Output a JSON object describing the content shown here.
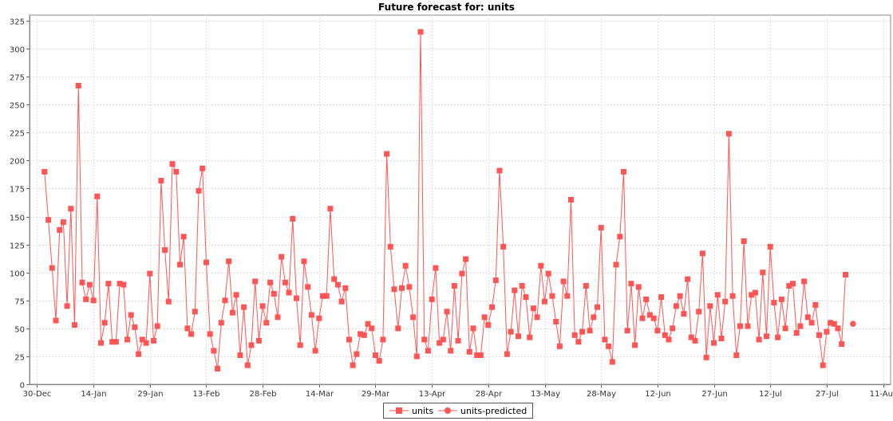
{
  "chart_data": {
    "type": "line",
    "title": "Future forecast for: units",
    "xlabel": "",
    "ylabel": "",
    "ylim": [
      0,
      330
    ],
    "yticks": [
      0,
      25,
      50,
      75,
      100,
      125,
      150,
      175,
      200,
      225,
      250,
      275,
      300,
      325
    ],
    "xlim": [
      "2023-12-28",
      "2024-08-13"
    ],
    "xticks": [
      {
        "date": "2023-12-30",
        "label": "30-Dec"
      },
      {
        "date": "2024-01-14",
        "label": "14-Jan"
      },
      {
        "date": "2024-01-29",
        "label": "29-Jan"
      },
      {
        "date": "2024-02-13",
        "label": "13-Feb"
      },
      {
        "date": "2024-02-28",
        "label": "28-Feb"
      },
      {
        "date": "2024-03-14",
        "label": "14-Mar"
      },
      {
        "date": "2024-03-29",
        "label": "29-Mar"
      },
      {
        "date": "2024-04-13",
        "label": "13-Apr"
      },
      {
        "date": "2024-04-28",
        "label": "28-Apr"
      },
      {
        "date": "2024-05-13",
        "label": "13-May"
      },
      {
        "date": "2024-05-28",
        "label": "28-May"
      },
      {
        "date": "2024-06-12",
        "label": "12-Jun"
      },
      {
        "date": "2024-06-27",
        "label": "27-Jun"
      },
      {
        "date": "2024-07-12",
        "label": "12-Jul"
      },
      {
        "date": "2024-07-27",
        "label": "27-Jul"
      },
      {
        "date": "2024-08-11",
        "label": "11-Aug"
      }
    ],
    "grid": true,
    "legend_position": "bottom",
    "series": [
      {
        "name": "units",
        "color": "#ff5555",
        "marker": "square",
        "start_date": "2024-01-01",
        "step_days": 1,
        "values": [
          190,
          147,
          104,
          57,
          138,
          145,
          70,
          157,
          53,
          267,
          91,
          76,
          89,
          75,
          168,
          37,
          55,
          90,
          38,
          38,
          90,
          89,
          40,
          62,
          51,
          27,
          40,
          37,
          99,
          39,
          52,
          182,
          120,
          74,
          197,
          190,
          107,
          132,
          50,
          45,
          65,
          173,
          193,
          109,
          45,
          30,
          14,
          55,
          75,
          110,
          64,
          80,
          26,
          69,
          17,
          35,
          92,
          39,
          70,
          55,
          91,
          81,
          60,
          114,
          91,
          82,
          148,
          77,
          35,
          110,
          87,
          62,
          30,
          59,
          79,
          79,
          157,
          94,
          89,
          74,
          86,
          40,
          17,
          27,
          45,
          44,
          54,
          50,
          26,
          21,
          40,
          206,
          123,
          85,
          50,
          86,
          106,
          87,
          60,
          25,
          315,
          40,
          30,
          76,
          104,
          37,
          40,
          65,
          30,
          88,
          39,
          99,
          112,
          29,
          50,
          26,
          26,
          60,
          53,
          69,
          93,
          191,
          123,
          27,
          47,
          84,
          43,
          88,
          78,
          42,
          68,
          60,
          106,
          74,
          99,
          79,
          56,
          34,
          92,
          79,
          165,
          44,
          38,
          47,
          88,
          48,
          60,
          69,
          140,
          40,
          34,
          20,
          107,
          132,
          190,
          48,
          90,
          35,
          87,
          59,
          76,
          62,
          59,
          48,
          78,
          44,
          40,
          50,
          70,
          79,
          63,
          94,
          42,
          39,
          65,
          117,
          24,
          70,
          37,
          80,
          41,
          74,
          224,
          79,
          26,
          52,
          128,
          52,
          80,
          82,
          40,
          100,
          43,
          123,
          73,
          42,
          76,
          50,
          88,
          90,
          46,
          52,
          92,
          60,
          55,
          71,
          44,
          17,
          47,
          55,
          54,
          50,
          36,
          98
        ]
      },
      {
        "name": "units-predicted",
        "color": "#ff5555",
        "marker": "circle",
        "points": [
          {
            "date": "2024-08-03",
            "value": 54
          }
        ]
      }
    ]
  }
}
